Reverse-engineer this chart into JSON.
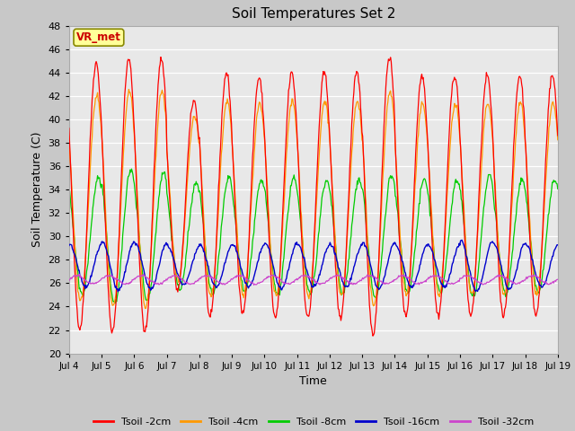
{
  "title": "Soil Temperatures Set 2",
  "xlabel": "Time",
  "ylabel": "Soil Temperature (C)",
  "ylim": [
    20,
    48
  ],
  "yticks": [
    20,
    22,
    24,
    26,
    28,
    30,
    32,
    34,
    36,
    38,
    40,
    42,
    44,
    46,
    48
  ],
  "xtick_labels": [
    "Jul 4",
    "Jul 5",
    "Jul 6",
    "Jul 7",
    "Jul 8",
    "Jul 9",
    "Jul 10",
    "Jul 11",
    "Jul 12",
    "Jul 13",
    "Jul 14",
    "Jul 15",
    "Jul 16",
    "Jul 17",
    "Jul 18",
    "Jul 19"
  ],
  "colors": {
    "Tsoil -2cm": "#ff0000",
    "Tsoil -4cm": "#ff9900",
    "Tsoil -8cm": "#00cc00",
    "Tsoil -16cm": "#0000cc",
    "Tsoil -32cm": "#cc44cc"
  },
  "fig_bg": "#c8c8c8",
  "plot_bg": "#e8e8e8",
  "annotation_text": "VR_met",
  "annotation_bg": "#ffff99",
  "annotation_border": "#888800"
}
